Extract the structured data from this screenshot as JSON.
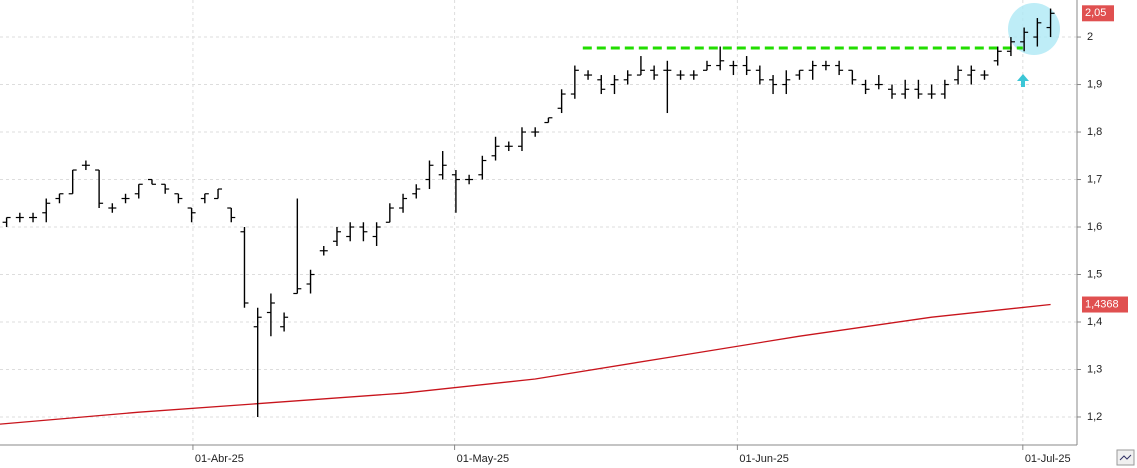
{
  "chart_data": {
    "type": "ohlc",
    "xlim": [
      -0.5,
      81
    ],
    "ylim": [
      1.141,
      2.078
    ],
    "xticks": [
      {
        "value": 14.1,
        "label": "01-Abr-25"
      },
      {
        "value": 33.9,
        "label": "01-May-25"
      },
      {
        "value": 55.3,
        "label": "01-Jun-25"
      },
      {
        "value": 76.9,
        "label": "01-Jul-25"
      }
    ],
    "yticks": [
      {
        "value": 1.2,
        "label": "1,2"
      },
      {
        "value": 1.3,
        "label": "1,3"
      },
      {
        "value": 1.4,
        "label": "1,4"
      },
      {
        "value": 1.5,
        "label": "1,5"
      },
      {
        "value": 1.6,
        "label": "1,6"
      },
      {
        "value": 1.7,
        "label": "1,7"
      },
      {
        "value": 1.8,
        "label": "1,8"
      },
      {
        "value": 1.9,
        "label": "1,9"
      },
      2
    ],
    "grid": true,
    "ohlc": {
      "color": "#000000",
      "open": [
        1.61,
        1.62,
        1.62,
        1.63,
        1.66,
        1.67,
        1.73,
        1.72,
        1.64,
        1.66,
        1.67,
        1.7,
        1.69,
        1.67,
        1.64,
        1.66,
        1.66,
        1.64,
        1.59,
        1.39,
        1.42,
        1.39,
        1.46,
        1.48,
        1.55,
        1.57,
        1.58,
        1.6,
        1.58,
        1.61,
        1.64,
        1.67,
        1.7,
        1.71,
        1.71,
        1.7,
        1.71,
        1.75,
        1.77,
        1.77,
        1.8,
        1.82,
        1.85,
        1.88,
        1.92,
        1.91,
        1.9,
        1.91,
        1.92,
        1.93,
        1.93,
        1.92,
        1.92,
        1.93,
        1.94,
        1.94,
        1.94,
        1.93,
        1.91,
        1.9,
        1.92,
        1.93,
        1.94,
        1.94,
        1.93,
        1.9,
        1.9,
        1.89,
        1.88,
        1.89,
        1.88,
        1.88,
        1.91,
        1.92,
        1.92,
        1.95,
        1.97,
        1.99,
        2.0,
        2.02
      ],
      "high": [
        1.62,
        1.63,
        1.63,
        1.66,
        1.67,
        1.72,
        1.74,
        1.72,
        1.65,
        1.67,
        1.69,
        1.7,
        1.69,
        1.67,
        1.64,
        1.67,
        1.68,
        1.64,
        1.6,
        1.43,
        1.46,
        1.42,
        1.66,
        1.51,
        1.56,
        1.6,
        1.61,
        1.61,
        1.61,
        1.65,
        1.67,
        1.69,
        1.74,
        1.76,
        1.72,
        1.71,
        1.75,
        1.79,
        1.78,
        1.81,
        1.81,
        1.83,
        1.89,
        1.94,
        1.93,
        1.92,
        1.92,
        1.93,
        1.96,
        1.94,
        1.95,
        1.93,
        1.93,
        1.95,
        1.98,
        1.95,
        1.96,
        1.94,
        1.92,
        1.93,
        1.93,
        1.95,
        1.95,
        1.95,
        1.93,
        1.91,
        1.92,
        1.9,
        1.91,
        1.91,
        1.9,
        1.91,
        1.94,
        1.94,
        1.93,
        1.98,
        2.0,
        2.02,
        2.04,
        2.06
      ],
      "low": [
        1.6,
        1.61,
        1.61,
        1.61,
        1.65,
        1.67,
        1.72,
        1.64,
        1.63,
        1.65,
        1.66,
        1.69,
        1.67,
        1.65,
        1.61,
        1.65,
        1.66,
        1.61,
        1.43,
        1.2,
        1.37,
        1.38,
        1.46,
        1.46,
        1.54,
        1.56,
        1.57,
        1.57,
        1.56,
        1.61,
        1.63,
        1.66,
        1.68,
        1.7,
        1.63,
        1.69,
        1.7,
        1.74,
        1.76,
        1.76,
        1.79,
        1.82,
        1.84,
        1.87,
        1.91,
        1.88,
        1.88,
        1.9,
        1.92,
        1.91,
        1.84,
        1.91,
        1.91,
        1.93,
        1.93,
        1.92,
        1.92,
        1.9,
        1.88,
        1.88,
        1.91,
        1.91,
        1.93,
        1.92,
        1.9,
        1.88,
        1.89,
        1.87,
        1.87,
        1.87,
        1.87,
        1.87,
        1.9,
        1.9,
        1.91,
        1.94,
        1.96,
        1.97,
        1.98,
        2.0
      ],
      "close": [
        1.62,
        1.62,
        1.62,
        1.65,
        1.67,
        1.72,
        1.73,
        1.65,
        1.64,
        1.66,
        1.69,
        1.69,
        1.68,
        1.66,
        1.63,
        1.67,
        1.68,
        1.62,
        1.44,
        1.41,
        1.44,
        1.41,
        1.47,
        1.5,
        1.55,
        1.59,
        1.6,
        1.59,
        1.6,
        1.64,
        1.66,
        1.68,
        1.73,
        1.73,
        1.7,
        1.7,
        1.74,
        1.77,
        1.77,
        1.8,
        1.8,
        1.83,
        1.88,
        1.93,
        1.92,
        1.89,
        1.91,
        1.92,
        1.93,
        1.92,
        1.93,
        1.92,
        1.92,
        1.94,
        1.95,
        1.94,
        1.93,
        1.91,
        1.9,
        1.91,
        1.93,
        1.94,
        1.94,
        1.93,
        1.91,
        1.89,
        1.9,
        1.88,
        1.89,
        1.88,
        1.88,
        1.9,
        1.93,
        1.93,
        1.92,
        1.97,
        1.99,
        2.01,
        2.03,
        2.05
      ],
      "last_label": "2,05"
    },
    "lines": [
      {
        "x": [
          -0.5,
          10,
          20,
          30,
          40,
          50,
          60,
          70,
          79
        ],
        "values": [
          1.185,
          1.21,
          1.23,
          1.25,
          1.28,
          1.325,
          1.37,
          1.41,
          1.4368
        ],
        "color": "#c8141c",
        "last_label": "1,4368"
      },
      {
        "x": [
          43.6,
          76.9
        ],
        "values": [
          1.977,
          1.977
        ],
        "color": "#22dd00",
        "dashed": true
      }
    ]
  }
}
